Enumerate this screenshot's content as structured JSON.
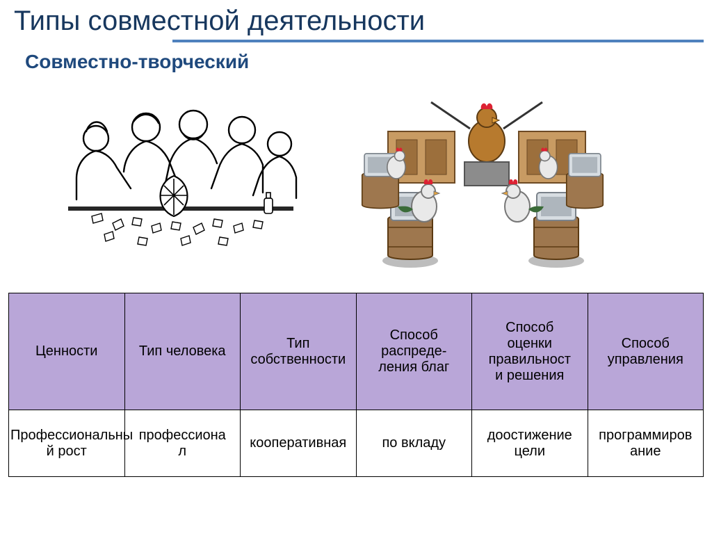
{
  "title": "Типы совместной деятельности",
  "subtitle": "Совместно-творческий",
  "colors": {
    "title_color": "#17375e",
    "subtitle_color": "#1f497d",
    "rule_color": "#4f81bd",
    "header_bg": "#b9a6d8",
    "cell_bg": "#ffffff",
    "border_color": "#000000",
    "text_color": "#000000"
  },
  "typography": {
    "title_fontsize": 40,
    "subtitle_fontsize": 28,
    "table_fontsize": 20
  },
  "illustrations": {
    "left_alt": "Группа людей собирает пазл-вазу",
    "right_alt": "Петухи с компьютерами и дирижёр"
  },
  "table": {
    "columns": [
      "Ценности",
      "Тип человека",
      "Тип\nсобственности",
      "Способ\nраспреде-\nления благ",
      "Способ\nоценки\nправильност\nи решения",
      "Способ\nуправления"
    ],
    "row": [
      "Профессиональны\nй рост",
      "профессиона\nл",
      "кооперативная",
      "по вкладу",
      "доостижение\nцели",
      "программиров\nание"
    ]
  }
}
